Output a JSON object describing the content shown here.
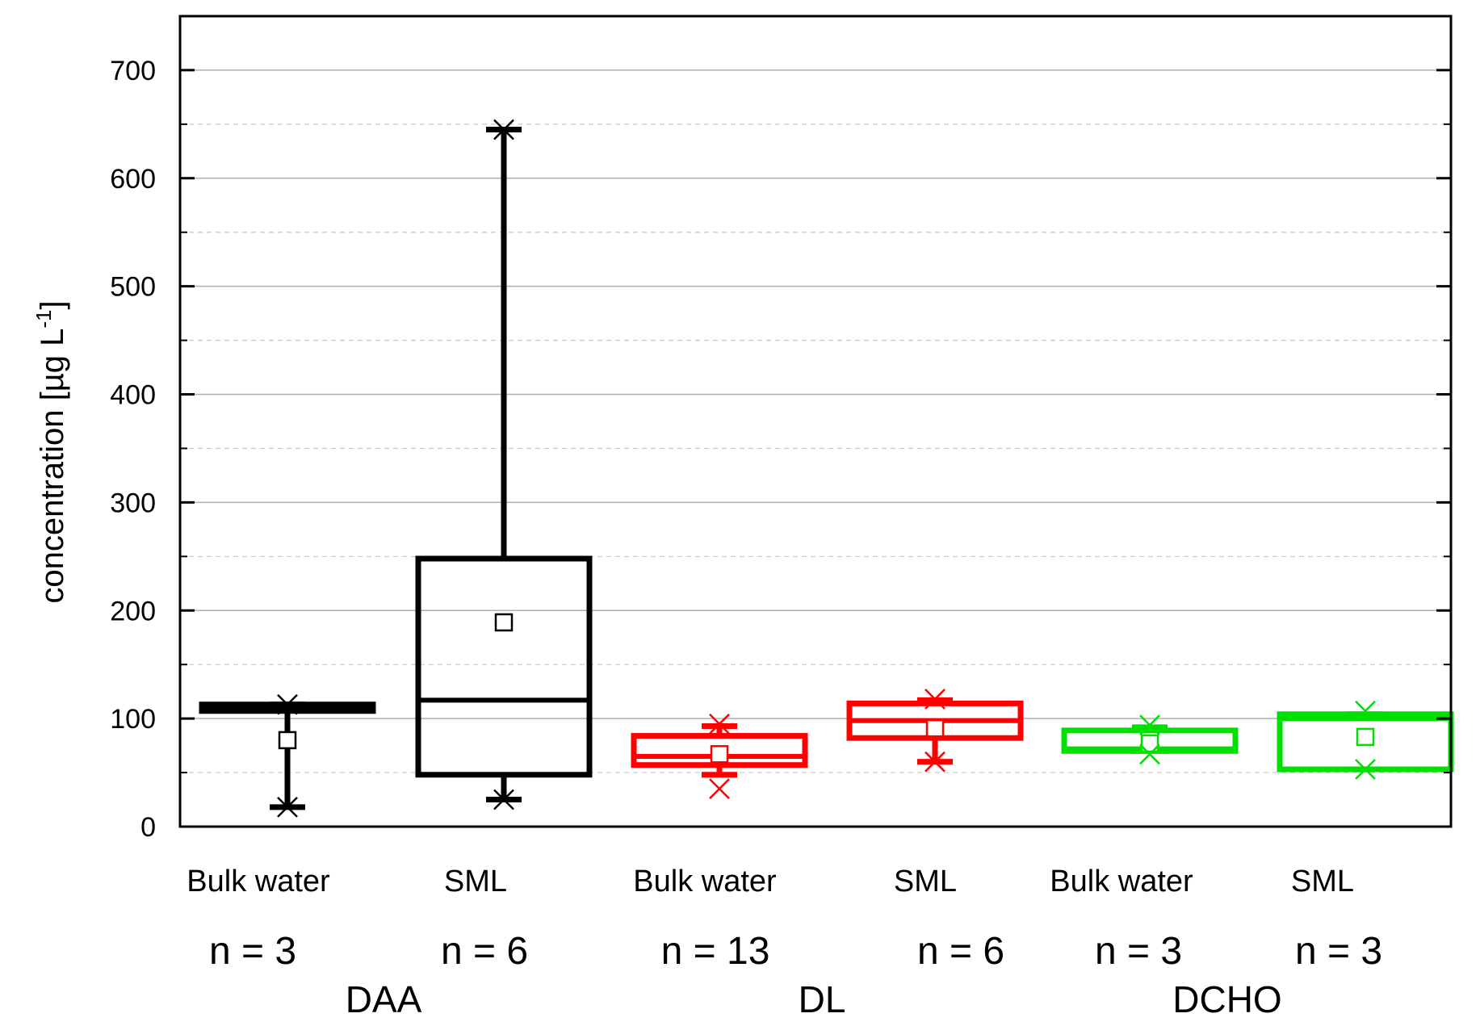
{
  "chart_data": {
    "type": "box",
    "ylabel_main": "concentration [µg L",
    "ylabel_sup": "-1",
    "ylabel_close": "]",
    "ylim": [
      0,
      750
    ],
    "yticks": [
      0,
      100,
      200,
      300,
      400,
      500,
      600,
      700
    ],
    "grid": {
      "major": true,
      "minor_dashed": true
    },
    "groups": [
      {
        "label": "DAA",
        "color": "#000000"
      },
      {
        "label": "DL",
        "color": "#ff0000"
      },
      {
        "label": "DCHO",
        "color": "#00e000"
      }
    ],
    "boxes": [
      {
        "category": "Bulk water",
        "n": "n = 3",
        "group": 0,
        "q1": 107,
        "median": 110,
        "q3": 113,
        "mean": 80,
        "whisker_low": 18,
        "whisker_high": 113,
        "min": 18,
        "max": 113
      },
      {
        "category": "SML",
        "n": "n = 6",
        "group": 0,
        "q1": 48,
        "median": 117,
        "q3": 248,
        "mean": 189,
        "whisker_low": 25,
        "whisker_high": 645,
        "min": 25,
        "max": 645
      },
      {
        "category": "Bulk water",
        "n": "n = 13",
        "group": 1,
        "q1": 57,
        "median": 65,
        "q3": 84,
        "mean": 67,
        "whisker_low": 48,
        "whisker_high": 93,
        "min": 35,
        "max": 95
      },
      {
        "category": "SML",
        "n": "n = 6",
        "group": 1,
        "q1": 82,
        "median": 98,
        "q3": 114,
        "mean": 91,
        "whisker_low": 60,
        "whisker_high": 117,
        "min": 60,
        "max": 118
      },
      {
        "category": "Bulk water",
        "n": "n = 3",
        "group": 2,
        "q1": 70,
        "median": 72,
        "q3": 89,
        "mean": 77,
        "whisker_low": 70,
        "whisker_high": 92,
        "min": 67,
        "max": 94
      },
      {
        "category": "SML",
        "n": "n = 3",
        "group": 2,
        "q1": 53,
        "median": 100,
        "q3": 104,
        "mean": 83,
        "whisker_low": 53,
        "whisker_high": 104,
        "min": 53,
        "max": 107
      }
    ]
  }
}
